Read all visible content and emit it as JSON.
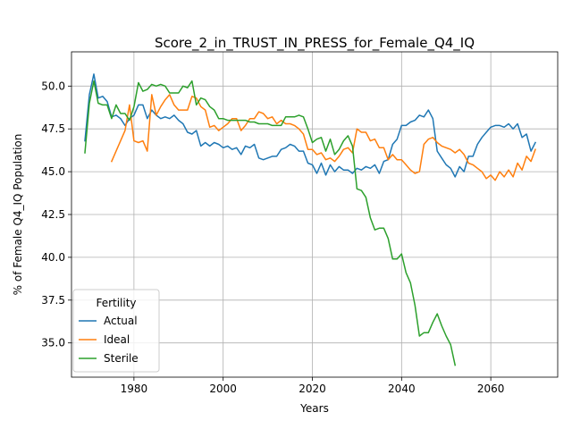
{
  "chart_data": {
    "type": "line",
    "title": "Score_2_in_TRUST_IN_PRESS_for_Female_Q4_IQ",
    "xlabel": "Years",
    "ylabel": "% of Female Q4_IQ Population",
    "xlim": [
      1966,
      2075
    ],
    "ylim": [
      33.0,
      52.0
    ],
    "xticks": [
      1980,
      2000,
      2020,
      2040,
      2060
    ],
    "yticks": [
      35.0,
      37.5,
      40.0,
      42.5,
      45.0,
      47.5,
      50.0
    ],
    "grid": true,
    "legend": {
      "title": "Fertility",
      "placement": "lower-left"
    },
    "series": [
      {
        "name": "Actual",
        "color": "#1f77b4",
        "points": [
          [
            1969,
            46.8
          ],
          [
            1970,
            49.5
          ],
          [
            1971,
            50.7
          ],
          [
            1972,
            49.3
          ],
          [
            1973,
            49.4
          ],
          [
            1974,
            49.1
          ],
          [
            1975,
            48.2
          ],
          [
            1976,
            48.3
          ],
          [
            1977,
            48.1
          ],
          [
            1978,
            47.7
          ],
          [
            1979,
            48.1
          ],
          [
            1980,
            48.3
          ],
          [
            1981,
            48.9
          ],
          [
            1982,
            48.9
          ],
          [
            1983,
            48.1
          ],
          [
            1984,
            48.6
          ],
          [
            1985,
            48.3
          ],
          [
            1986,
            48.1
          ],
          [
            1987,
            48.2
          ],
          [
            1988,
            48.1
          ],
          [
            1989,
            48.3
          ],
          [
            1990,
            48.0
          ],
          [
            1991,
            47.8
          ],
          [
            1992,
            47.3
          ],
          [
            1993,
            47.2
          ],
          [
            1994,
            47.4
          ],
          [
            1995,
            46.5
          ],
          [
            1996,
            46.7
          ],
          [
            1997,
            46.5
          ],
          [
            1998,
            46.7
          ],
          [
            1999,
            46.6
          ],
          [
            2000,
            46.4
          ],
          [
            2001,
            46.5
          ],
          [
            2002,
            46.3
          ],
          [
            2003,
            46.4
          ],
          [
            2004,
            46.0
          ],
          [
            2005,
            46.5
          ],
          [
            2006,
            46.4
          ],
          [
            2007,
            46.6
          ],
          [
            2008,
            45.8
          ],
          [
            2009,
            45.7
          ],
          [
            2010,
            45.8
          ],
          [
            2011,
            45.9
          ],
          [
            2012,
            45.9
          ],
          [
            2013,
            46.3
          ],
          [
            2014,
            46.4
          ],
          [
            2015,
            46.6
          ],
          [
            2016,
            46.5
          ],
          [
            2017,
            46.2
          ],
          [
            2018,
            46.2
          ],
          [
            2019,
            45.5
          ],
          [
            2020,
            45.4
          ],
          [
            2021,
            44.9
          ],
          [
            2022,
            45.5
          ],
          [
            2023,
            44.8
          ],
          [
            2024,
            45.4
          ],
          [
            2025,
            45.0
          ],
          [
            2026,
            45.3
          ],
          [
            2027,
            45.1
          ],
          [
            2028,
            45.1
          ],
          [
            2029,
            44.9
          ],
          [
            2030,
            45.2
          ],
          [
            2031,
            45.1
          ],
          [
            2032,
            45.3
          ],
          [
            2033,
            45.2
          ],
          [
            2034,
            45.4
          ],
          [
            2035,
            44.9
          ],
          [
            2036,
            45.6
          ],
          [
            2037,
            45.7
          ],
          [
            2038,
            46.6
          ],
          [
            2039,
            46.9
          ],
          [
            2040,
            47.7
          ],
          [
            2041,
            47.7
          ],
          [
            2042,
            47.9
          ],
          [
            2043,
            48.0
          ],
          [
            2044,
            48.3
          ],
          [
            2045,
            48.2
          ],
          [
            2046,
            48.6
          ],
          [
            2047,
            48.1
          ],
          [
            2048,
            46.2
          ],
          [
            2049,
            45.8
          ],
          [
            2050,
            45.4
          ],
          [
            2051,
            45.2
          ],
          [
            2052,
            44.7
          ],
          [
            2053,
            45.3
          ],
          [
            2054,
            45.0
          ],
          [
            2055,
            45.9
          ],
          [
            2056,
            45.9
          ],
          [
            2057,
            46.6
          ],
          [
            2058,
            47.0
          ],
          [
            2059,
            47.3
          ],
          [
            2060,
            47.6
          ],
          [
            2061,
            47.7
          ],
          [
            2062,
            47.7
          ],
          [
            2063,
            47.6
          ],
          [
            2064,
            47.8
          ],
          [
            2065,
            47.5
          ],
          [
            2066,
            47.8
          ],
          [
            2067,
            47.0
          ],
          [
            2068,
            47.2
          ],
          [
            2069,
            46.2
          ],
          [
            2070,
            46.7
          ]
        ]
      },
      {
        "name": "Ideal",
        "color": "#ff7f0e",
        "points": [
          [
            1975,
            45.6
          ],
          [
            1976,
            46.2
          ],
          [
            1977,
            46.8
          ],
          [
            1978,
            47.4
          ],
          [
            1979,
            48.9
          ],
          [
            1980,
            46.8
          ],
          [
            1981,
            46.7
          ],
          [
            1982,
            46.8
          ],
          [
            1983,
            46.2
          ],
          [
            1984,
            49.5
          ],
          [
            1985,
            48.3
          ],
          [
            1986,
            48.8
          ],
          [
            1987,
            49.2
          ],
          [
            1988,
            49.5
          ],
          [
            1989,
            48.9
          ],
          [
            1990,
            48.6
          ],
          [
            1991,
            48.6
          ],
          [
            1992,
            48.6
          ],
          [
            1993,
            49.4
          ],
          [
            1994,
            49.3
          ],
          [
            1995,
            48.8
          ],
          [
            1996,
            48.6
          ],
          [
            1997,
            47.6
          ],
          [
            1998,
            47.7
          ],
          [
            1999,
            47.4
          ],
          [
            2000,
            47.6
          ],
          [
            2001,
            47.8
          ],
          [
            2002,
            48.1
          ],
          [
            2003,
            48.1
          ],
          [
            2004,
            47.4
          ],
          [
            2005,
            47.7
          ],
          [
            2006,
            48.1
          ],
          [
            2007,
            48.1
          ],
          [
            2008,
            48.5
          ],
          [
            2009,
            48.4
          ],
          [
            2010,
            48.1
          ],
          [
            2011,
            48.2
          ],
          [
            2012,
            47.8
          ],
          [
            2013,
            48.0
          ],
          [
            2014,
            47.8
          ],
          [
            2015,
            47.8
          ],
          [
            2016,
            47.7
          ],
          [
            2017,
            47.5
          ],
          [
            2018,
            47.2
          ],
          [
            2019,
            46.3
          ],
          [
            2020,
            46.3
          ],
          [
            2021,
            46.0
          ],
          [
            2022,
            46.1
          ],
          [
            2023,
            45.7
          ],
          [
            2024,
            45.8
          ],
          [
            2025,
            45.6
          ],
          [
            2026,
            45.9
          ],
          [
            2027,
            46.3
          ],
          [
            2028,
            46.4
          ],
          [
            2029,
            46.1
          ],
          [
            2030,
            47.5
          ],
          [
            2031,
            47.3
          ],
          [
            2032,
            47.3
          ],
          [
            2033,
            46.8
          ],
          [
            2034,
            46.9
          ],
          [
            2035,
            46.4
          ],
          [
            2036,
            46.4
          ],
          [
            2037,
            45.7
          ],
          [
            2038,
            46.0
          ],
          [
            2039,
            45.7
          ],
          [
            2040,
            45.7
          ],
          [
            2041,
            45.4
          ],
          [
            2042,
            45.1
          ],
          [
            2043,
            44.9
          ],
          [
            2044,
            45.0
          ],
          [
            2045,
            46.6
          ],
          [
            2046,
            46.9
          ],
          [
            2047,
            47.0
          ],
          [
            2048,
            46.7
          ],
          [
            2049,
            46.5
          ],
          [
            2050,
            46.4
          ],
          [
            2051,
            46.3
          ],
          [
            2052,
            46.1
          ],
          [
            2053,
            46.3
          ],
          [
            2054,
            46.0
          ],
          [
            2055,
            45.5
          ],
          [
            2056,
            45.4
          ],
          [
            2057,
            45.2
          ],
          [
            2058,
            45.0
          ],
          [
            2059,
            44.6
          ],
          [
            2060,
            44.8
          ],
          [
            2061,
            44.5
          ],
          [
            2062,
            45.0
          ],
          [
            2063,
            44.7
          ],
          [
            2064,
            45.1
          ],
          [
            2065,
            44.7
          ],
          [
            2066,
            45.5
          ],
          [
            2067,
            45.1
          ],
          [
            2068,
            45.9
          ],
          [
            2069,
            45.6
          ],
          [
            2070,
            46.3
          ]
        ]
      },
      {
        "name": "Sterile",
        "color": "#2ca02c",
        "points": [
          [
            1969,
            46.1
          ],
          [
            1970,
            49.0
          ],
          [
            1971,
            50.3
          ],
          [
            1972,
            49.0
          ],
          [
            1973,
            48.9
          ],
          [
            1974,
            48.9
          ],
          [
            1975,
            48.1
          ],
          [
            1976,
            48.9
          ],
          [
            1977,
            48.4
          ],
          [
            1978,
            48.4
          ],
          [
            1979,
            48.0
          ],
          [
            1980,
            48.8
          ],
          [
            1981,
            50.2
          ],
          [
            1982,
            49.7
          ],
          [
            1983,
            49.8
          ],
          [
            1984,
            50.1
          ],
          [
            1985,
            50.0
          ],
          [
            1986,
            50.1
          ],
          [
            1987,
            50.0
          ],
          [
            1988,
            49.6
          ],
          [
            1989,
            49.6
          ],
          [
            1990,
            49.6
          ],
          [
            1991,
            50.0
          ],
          [
            1992,
            49.9
          ],
          [
            1993,
            50.3
          ],
          [
            1994,
            48.9
          ],
          [
            1995,
            49.3
          ],
          [
            1996,
            49.2
          ],
          [
            1997,
            48.8
          ],
          [
            1998,
            48.6
          ],
          [
            1999,
            48.1
          ],
          [
            2000,
            48.1
          ],
          [
            2001,
            48.0
          ],
          [
            2002,
            48.0
          ],
          [
            2003,
            48.0
          ],
          [
            2004,
            48.0
          ],
          [
            2005,
            48.0
          ],
          [
            2006,
            47.9
          ],
          [
            2007,
            47.9
          ],
          [
            2008,
            47.8
          ],
          [
            2009,
            47.8
          ],
          [
            2010,
            47.8
          ],
          [
            2011,
            47.7
          ],
          [
            2012,
            47.7
          ],
          [
            2013,
            47.7
          ],
          [
            2014,
            48.2
          ],
          [
            2015,
            48.2
          ],
          [
            2016,
            48.2
          ],
          [
            2017,
            48.3
          ],
          [
            2018,
            48.2
          ],
          [
            2019,
            47.5
          ],
          [
            2020,
            46.7
          ],
          [
            2021,
            46.9
          ],
          [
            2022,
            47.0
          ],
          [
            2023,
            46.2
          ],
          [
            2024,
            46.9
          ],
          [
            2025,
            46.0
          ],
          [
            2026,
            46.3
          ],
          [
            2027,
            46.8
          ],
          [
            2028,
            47.1
          ],
          [
            2029,
            46.5
          ],
          [
            2030,
            44.0
          ],
          [
            2031,
            43.9
          ],
          [
            2032,
            43.5
          ],
          [
            2033,
            42.3
          ],
          [
            2034,
            41.6
          ],
          [
            2035,
            41.7
          ],
          [
            2036,
            41.7
          ],
          [
            2037,
            41.1
          ],
          [
            2038,
            39.9
          ],
          [
            2039,
            39.9
          ],
          [
            2040,
            40.2
          ],
          [
            2041,
            39.1
          ],
          [
            2042,
            38.5
          ],
          [
            2043,
            37.2
          ],
          [
            2044,
            35.4
          ],
          [
            2045,
            35.6
          ],
          [
            2046,
            35.6
          ],
          [
            2047,
            36.2
          ],
          [
            2048,
            36.7
          ],
          [
            2049,
            36.0
          ],
          [
            2050,
            35.4
          ],
          [
            2051,
            34.9
          ],
          [
            2052,
            33.7
          ]
        ]
      }
    ]
  }
}
